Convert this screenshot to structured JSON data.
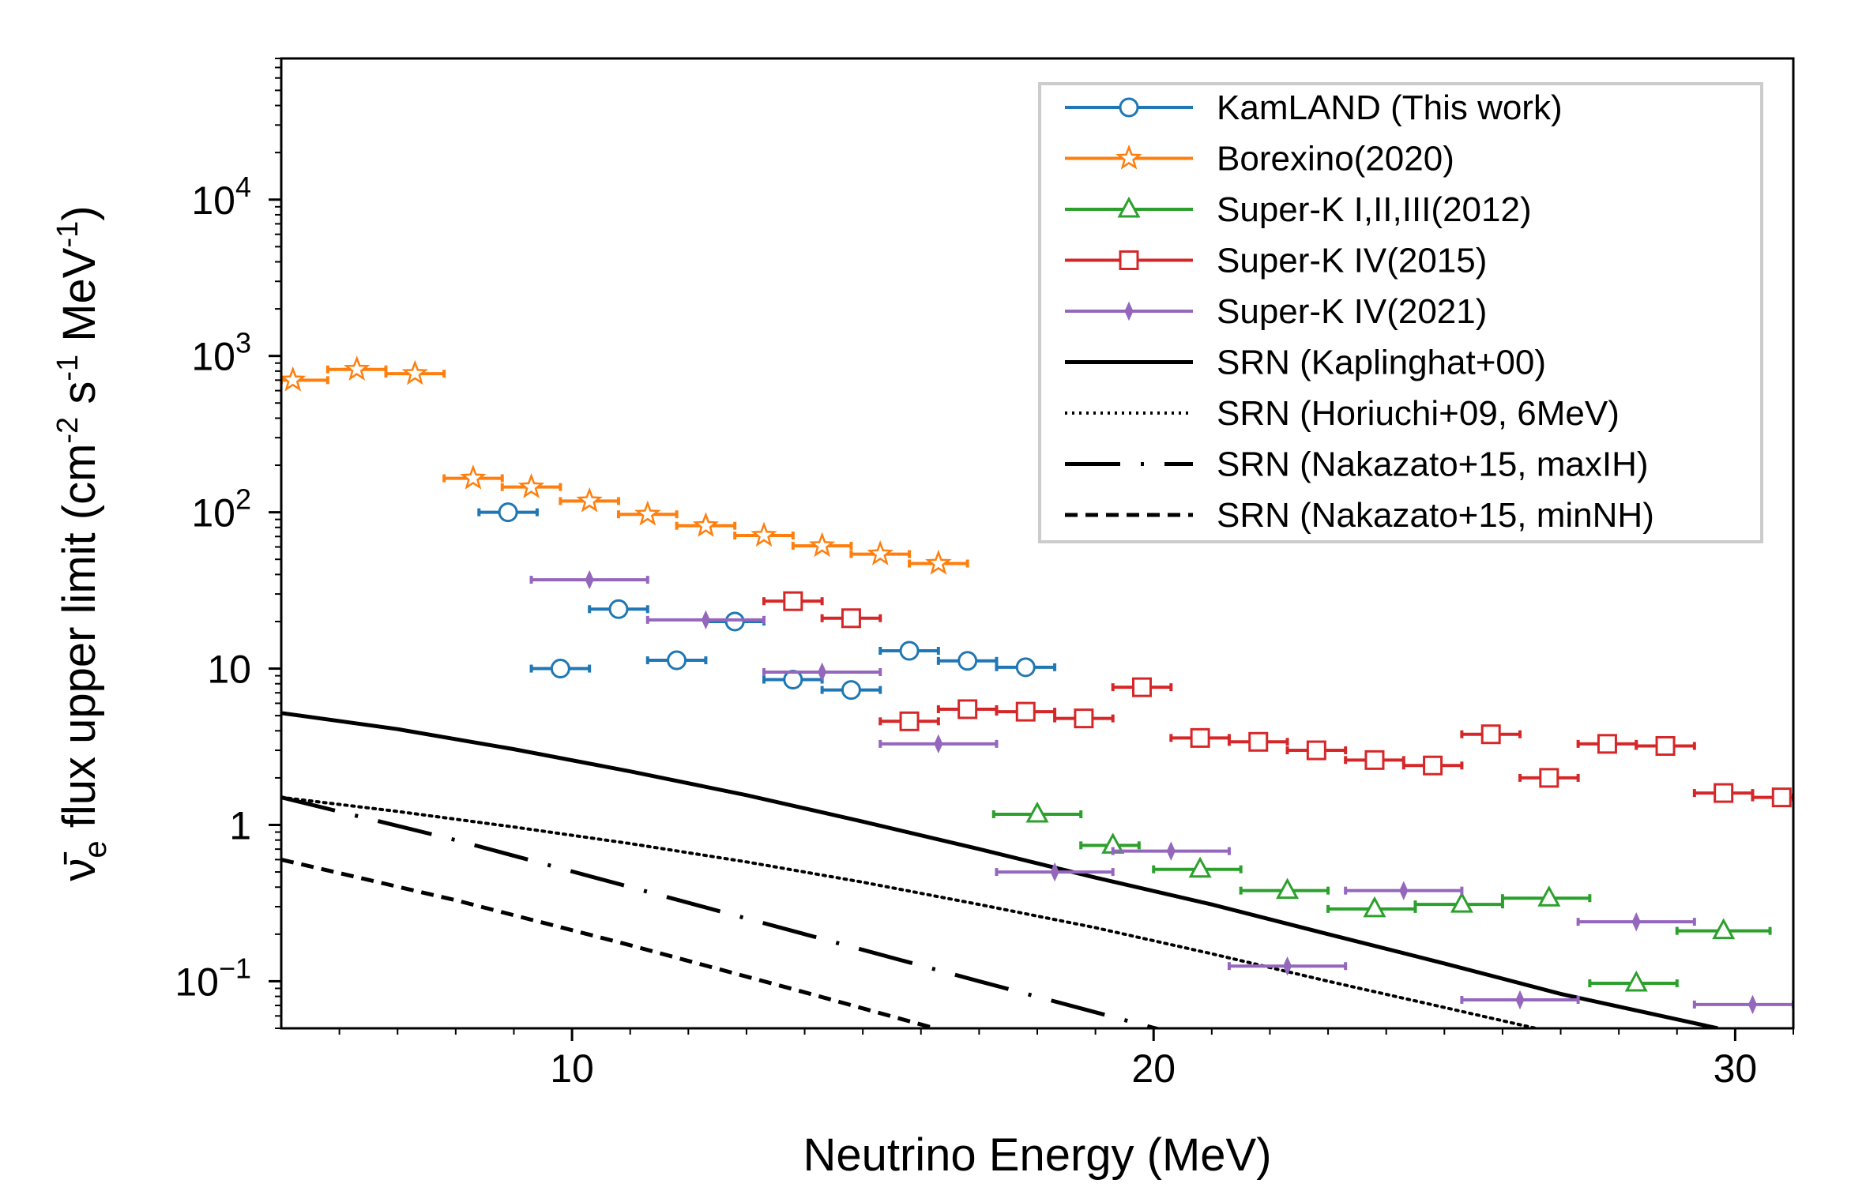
{
  "chart_data": {
    "type": "scatter",
    "title": "",
    "xlabel": "Neutrino Energy (MeV)",
    "ylabel": {
      "prefix_symbol": "ν̄",
      "subscript": "e",
      "text": " flux upper limit (cm",
      "exp1": "-2",
      "mid": " s",
      "exp2": "-1",
      "tail": " MeV",
      "exp3": "-1",
      "close": ")"
    },
    "xlim": [
      5,
      31
    ],
    "ylim": [
      0.05,
      80000
    ],
    "yscale": "log",
    "xticks": [
      {
        "value": 10,
        "label": "10"
      },
      {
        "value": 20,
        "label": "20"
      },
      {
        "value": 30,
        "label": "30"
      }
    ],
    "yticks": [
      {
        "value": 0.1,
        "base": "10",
        "exp": "−1"
      },
      {
        "value": 1,
        "base": "1",
        "exp": ""
      },
      {
        "value": 10,
        "base": "10",
        "exp": ""
      },
      {
        "value": 100,
        "base": "10",
        "exp": "2"
      },
      {
        "value": 1000,
        "base": "10",
        "exp": "3"
      },
      {
        "value": 10000,
        "base": "10",
        "exp": "4"
      }
    ],
    "legend_position": "top-right",
    "series": [
      {
        "name": "KamLAND (This work)",
        "color": "#1f77b4",
        "marker": "circle",
        "points": [
          {
            "x": 8.9,
            "y": 100,
            "x0": 8.4,
            "x1": 9.4
          },
          {
            "x": 9.8,
            "y": 10,
            "x0": 9.3,
            "x1": 10.3
          },
          {
            "x": 10.8,
            "y": 24,
            "x0": 10.3,
            "x1": 11.3
          },
          {
            "x": 11.8,
            "y": 11.3,
            "x0": 11.3,
            "x1": 12.3
          },
          {
            "x": 12.8,
            "y": 20,
            "x0": 12.3,
            "x1": 13.3
          },
          {
            "x": 13.8,
            "y": 8.5,
            "x0": 13.3,
            "x1": 14.3
          },
          {
            "x": 14.8,
            "y": 7.3,
            "x0": 14.3,
            "x1": 15.3
          },
          {
            "x": 15.8,
            "y": 13,
            "x0": 15.3,
            "x1": 16.3
          },
          {
            "x": 16.8,
            "y": 11.2,
            "x0": 16.3,
            "x1": 17.3
          },
          {
            "x": 17.8,
            "y": 10.2,
            "x0": 17.3,
            "x1": 18.3
          }
        ]
      },
      {
        "name": "Borexino(2020)",
        "color": "#ff7f0e",
        "marker": "star",
        "points": [
          {
            "x": 5.2,
            "y": 700,
            "x0": 5.0,
            "x1": 5.8
          },
          {
            "x": 6.3,
            "y": 820,
            "x0": 5.8,
            "x1": 6.8
          },
          {
            "x": 7.3,
            "y": 770,
            "x0": 6.8,
            "x1": 7.8
          },
          {
            "x": 8.3,
            "y": 165,
            "x0": 7.8,
            "x1": 8.8
          },
          {
            "x": 9.3,
            "y": 145,
            "x0": 8.8,
            "x1": 9.8
          },
          {
            "x": 10.3,
            "y": 118,
            "x0": 9.8,
            "x1": 10.8
          },
          {
            "x": 11.3,
            "y": 97,
            "x0": 10.8,
            "x1": 11.8
          },
          {
            "x": 12.3,
            "y": 82,
            "x0": 11.8,
            "x1": 12.8
          },
          {
            "x": 13.3,
            "y": 71,
            "x0": 12.8,
            "x1": 13.8
          },
          {
            "x": 14.3,
            "y": 61,
            "x0": 13.8,
            "x1": 14.8
          },
          {
            "x": 15.3,
            "y": 54,
            "x0": 14.8,
            "x1": 15.8
          },
          {
            "x": 16.3,
            "y": 47,
            "x0": 15.8,
            "x1": 16.8
          }
        ]
      },
      {
        "name": "Super-K I,II,III(2012)",
        "color": "#2ca02c",
        "marker": "triangle",
        "points": [
          {
            "x": 18.0,
            "y": 1.17,
            "x0": 17.25,
            "x1": 18.75
          },
          {
            "x": 19.3,
            "y": 0.74,
            "x0": 18.75,
            "x1": 19.75
          },
          {
            "x": 20.8,
            "y": 0.52,
            "x0": 20.0,
            "x1": 21.5
          },
          {
            "x": 22.3,
            "y": 0.38,
            "x0": 21.5,
            "x1": 23.0
          },
          {
            "x": 23.8,
            "y": 0.29,
            "x0": 23.0,
            "x1": 24.5
          },
          {
            "x": 25.3,
            "y": 0.31,
            "x0": 24.5,
            "x1": 26.0
          },
          {
            "x": 26.8,
            "y": 0.34,
            "x0": 26.0,
            "x1": 27.5
          },
          {
            "x": 28.3,
            "y": 0.097,
            "x0": 27.5,
            "x1": 29.0
          },
          {
            "x": 29.8,
            "y": 0.21,
            "x0": 29.0,
            "x1": 30.6
          }
        ]
      },
      {
        "name": "Super-K IV(2015)",
        "color": "#d62728",
        "marker": "square",
        "points": [
          {
            "x": 13.8,
            "y": 27,
            "x0": 13.3,
            "x1": 14.3
          },
          {
            "x": 14.8,
            "y": 21,
            "x0": 14.3,
            "x1": 15.3
          },
          {
            "x": 15.8,
            "y": 4.6,
            "x0": 15.3,
            "x1": 16.3
          },
          {
            "x": 16.8,
            "y": 5.5,
            "x0": 16.3,
            "x1": 17.3
          },
          {
            "x": 17.8,
            "y": 5.3,
            "x0": 17.3,
            "x1": 18.3
          },
          {
            "x": 18.8,
            "y": 4.8,
            "x0": 18.3,
            "x1": 19.3
          },
          {
            "x": 19.8,
            "y": 7.6,
            "x0": 19.3,
            "x1": 20.3
          },
          {
            "x": 20.8,
            "y": 3.6,
            "x0": 20.3,
            "x1": 21.3
          },
          {
            "x": 21.8,
            "y": 3.4,
            "x0": 21.3,
            "x1": 22.3
          },
          {
            "x": 22.8,
            "y": 3.0,
            "x0": 22.3,
            "x1": 23.3
          },
          {
            "x": 23.8,
            "y": 2.6,
            "x0": 23.3,
            "x1": 24.3
          },
          {
            "x": 24.8,
            "y": 2.4,
            "x0": 24.3,
            "x1": 25.3
          },
          {
            "x": 25.8,
            "y": 3.8,
            "x0": 25.3,
            "x1": 26.3
          },
          {
            "x": 26.8,
            "y": 2.0,
            "x0": 26.3,
            "x1": 27.3
          },
          {
            "x": 27.8,
            "y": 3.3,
            "x0": 27.3,
            "x1": 28.3
          },
          {
            "x": 28.8,
            "y": 3.2,
            "x0": 28.3,
            "x1": 29.3
          },
          {
            "x": 29.8,
            "y": 1.6,
            "x0": 29.3,
            "x1": 30.3
          },
          {
            "x": 30.8,
            "y": 1.5,
            "x0": 30.3,
            "x1": 31.0
          }
        ]
      },
      {
        "name": "Super-K IV(2021)",
        "color": "#9467bd",
        "marker": "thin-diamond",
        "points": [
          {
            "x": 10.3,
            "y": 37,
            "x0": 9.3,
            "x1": 11.3
          },
          {
            "x": 12.3,
            "y": 20.5,
            "x0": 11.3,
            "x1": 13.3
          },
          {
            "x": 14.3,
            "y": 9.5,
            "x0": 13.3,
            "x1": 15.3
          },
          {
            "x": 16.3,
            "y": 3.3,
            "x0": 15.3,
            "x1": 17.3
          },
          {
            "x": 18.3,
            "y": 0.5,
            "x0": 17.3,
            "x1": 19.3
          },
          {
            "x": 20.3,
            "y": 0.68,
            "x0": 19.3,
            "x1": 21.3
          },
          {
            "x": 22.3,
            "y": 0.125,
            "x0": 21.3,
            "x1": 23.3
          },
          {
            "x": 24.3,
            "y": 0.38,
            "x0": 23.3,
            "x1": 25.3
          },
          {
            "x": 26.3,
            "y": 0.076,
            "x0": 25.3,
            "x1": 27.3
          },
          {
            "x": 28.3,
            "y": 0.24,
            "x0": 27.3,
            "x1": 29.3
          },
          {
            "x": 30.3,
            "y": 0.071,
            "x0": 29.3,
            "x1": 31.0
          }
        ]
      }
    ],
    "lines": [
      {
        "name": "SRN (Kaplinghat+00)",
        "style": "solid",
        "color": "#000000",
        "x": [
          5,
          7,
          9,
          11,
          13,
          15,
          17,
          19,
          21,
          23,
          25,
          27,
          29.7
        ],
        "y": [
          5.2,
          4.1,
          3.05,
          2.2,
          1.55,
          1.05,
          0.7,
          0.46,
          0.31,
          0.2,
          0.13,
          0.083,
          0.05
        ]
      },
      {
        "name": "SRN (Horiuchi+09, 6MeV)",
        "style": "dotted",
        "color": "#000000",
        "x": [
          5,
          7,
          9,
          11,
          13,
          15,
          17,
          19,
          21,
          23,
          25,
          27
        ],
        "y": [
          1.5,
          1.22,
          0.97,
          0.76,
          0.58,
          0.43,
          0.31,
          0.22,
          0.15,
          0.1,
          0.068,
          0.046
        ]
      },
      {
        "name": "SRN (Nakazato+15, maxIH)",
        "style": "dashdot",
        "color": "#000000",
        "x": [
          5,
          8,
          11,
          14,
          17,
          20.4
        ],
        "y": [
          1.5,
          0.8,
          0.4,
          0.2,
          0.1,
          0.046
        ]
      },
      {
        "name": "SRN (Nakazato+15, minNH)",
        "style": "dashed",
        "color": "#000000",
        "x": [
          5,
          8,
          11,
          14,
          16.5
        ],
        "y": [
          0.6,
          0.33,
          0.17,
          0.085,
          0.047
        ]
      }
    ]
  }
}
